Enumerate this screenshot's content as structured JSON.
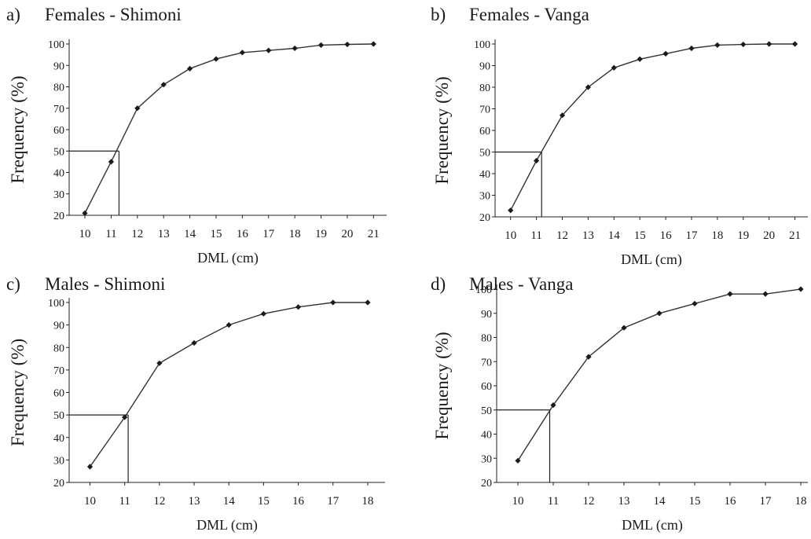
{
  "chart_data": [
    {
      "type": "line",
      "letter": "a)",
      "title": "Females - Shimoni",
      "xlabel": "DML (cm)",
      "ylabel": "Frequency (%)",
      "xticks": [
        10,
        11,
        12,
        13,
        14,
        15,
        16,
        17,
        18,
        19,
        20,
        21
      ],
      "yticks": [
        20,
        30,
        40,
        50,
        60,
        70,
        80,
        90,
        100
      ],
      "xlim": [
        9.4,
        21.5
      ],
      "ylim": [
        20,
        100
      ],
      "x": [
        10,
        11,
        12,
        13,
        14,
        15,
        16,
        17,
        18,
        19,
        20,
        21
      ],
      "y": [
        21,
        45,
        70,
        81,
        88.5,
        93,
        96,
        97,
        98,
        99.5,
        99.8,
        100
      ],
      "guide_x": 11.3,
      "guide_y": 50
    },
    {
      "type": "line",
      "letter": "b)",
      "title": "Females - Vanga",
      "xlabel": "DML (cm)",
      "ylabel": "Frequency (%)",
      "xticks": [
        10,
        11,
        12,
        13,
        14,
        15,
        16,
        17,
        18,
        19,
        20,
        21
      ],
      "yticks": [
        20,
        30,
        40,
        50,
        60,
        70,
        80,
        90,
        100
      ],
      "xlim": [
        9.4,
        21.5
      ],
      "ylim": [
        20,
        100
      ],
      "x": [
        10,
        11,
        12,
        13,
        14,
        15,
        16,
        17,
        18,
        19,
        20,
        21
      ],
      "y": [
        23,
        46,
        67,
        80,
        89,
        93,
        95.5,
        98,
        99.5,
        99.8,
        100,
        100
      ],
      "guide_x": 11.2,
      "guide_y": 50
    },
    {
      "type": "line",
      "letter": "c)",
      "title": "Males - Shimoni",
      "xlabel": "DML (cm)",
      "ylabel": "Frequency (%)",
      "xticks": [
        10,
        11,
        12,
        13,
        14,
        15,
        16,
        17,
        18
      ],
      "yticks": [
        20,
        30,
        40,
        50,
        60,
        70,
        80,
        90,
        100
      ],
      "xlim": [
        9.4,
        18.5
      ],
      "ylim": [
        20,
        100
      ],
      "x": [
        10,
        11,
        12,
        13,
        14,
        15,
        16,
        17,
        18
      ],
      "y": [
        27,
        49,
        73,
        82,
        90,
        95,
        98,
        100,
        100
      ],
      "guide_x": 11.1,
      "guide_y": 50
    },
    {
      "type": "line",
      "letter": "d)",
      "title": "Males - Vanga",
      "xlabel": "DML (cm)",
      "ylabel": "Frequency (%)",
      "xticks": [
        10,
        11,
        12,
        13,
        14,
        15,
        16,
        17,
        18
      ],
      "yticks": [
        20,
        30,
        40,
        50,
        60,
        70,
        80,
        90,
        100
      ],
      "xlim": [
        9.4,
        18.2
      ],
      "ylim": [
        20,
        100
      ],
      "x": [
        10,
        11,
        12,
        13,
        14,
        15,
        16,
        17,
        18
      ],
      "y": [
        29,
        52,
        72,
        84,
        90,
        94,
        98,
        98,
        100
      ],
      "guide_x": 10.9,
      "guide_y": 50
    }
  ],
  "colors": {
    "line": "#333333",
    "marker": "#1a1a1a",
    "axis": "#222222"
  }
}
